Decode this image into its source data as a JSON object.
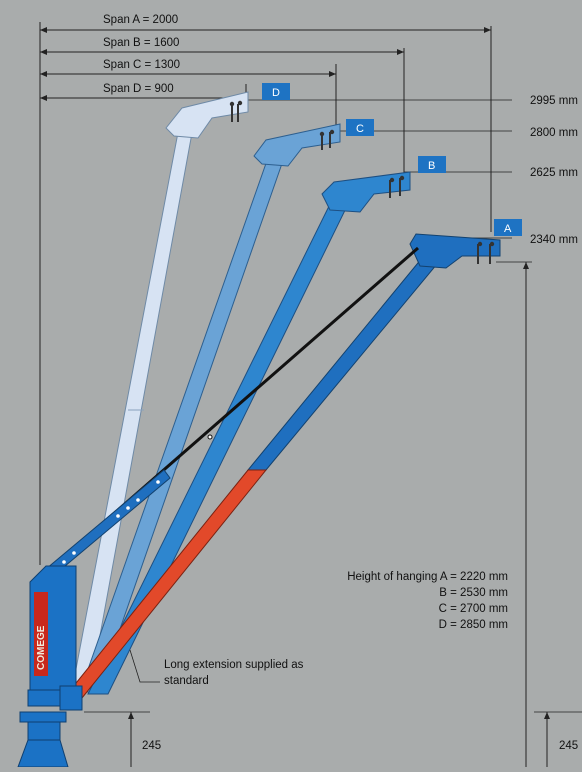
{
  "spans": [
    {
      "label": "Span A = 2000"
    },
    {
      "label": "Span B = 1600"
    },
    {
      "label": "Span C = 1300"
    },
    {
      "label": "Span D = 900"
    }
  ],
  "heights": [
    {
      "badge": "D",
      "label": "2995 mm"
    },
    {
      "badge": "C",
      "label": "2800 mm"
    },
    {
      "badge": "B",
      "label": "2625 mm"
    },
    {
      "badge": "A",
      "label": "2340 mm"
    }
  ],
  "hanging": {
    "line1": "Height of hanging A = 2220 mm",
    "line2": "B = 2530 mm",
    "line3": "C = 2700 mm",
    "line4": "D = 2850 mm"
  },
  "note": {
    "line1": "Long extension supplied as",
    "line2": "standard"
  },
  "base_dim": {
    "left": "245",
    "right": "245"
  },
  "brand": "COMEGE",
  "colors": {
    "background": "#a9acac",
    "boom_d": "#d7e3f3",
    "boom_c": "#6aa3d6",
    "boom_b": "#2e86cf",
    "boom_a": "#1f6fbf",
    "extension": "#e2492a",
    "post": "#1b72c5",
    "brand_red": "#c8281c"
  }
}
